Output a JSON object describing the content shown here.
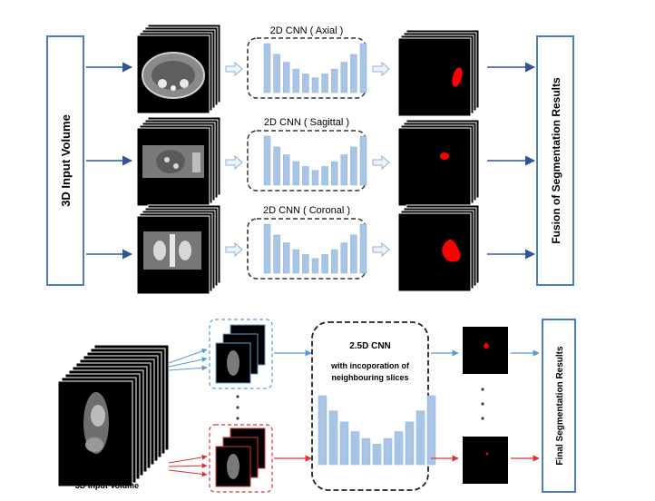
{
  "top": {
    "input_label": "3D  Input  Volume",
    "fusion_label": "Fusion of Segmentation Results",
    "rows": [
      {
        "cnn_label": "2D CNN ( Axial )"
      },
      {
        "cnn_label": "2D CNN ( Sagittal )"
      },
      {
        "cnn_label": "2D CNN ( Coronal )"
      }
    ]
  },
  "bottom": {
    "input_label": "3D Input Volume",
    "cnn_title": "2.5D CNN",
    "cnn_subtitle_line1": "with incoporation of",
    "cnn_subtitle_line2": "neighbouring slices",
    "final_label": "Final Segmentation Results"
  },
  "colors": {
    "box_border": "#4f7cbd",
    "arrow": "#2f5597",
    "bar": "#a9c5e6",
    "bar_edge": "#8fb0d8",
    "segment": "#ff0000",
    "blue_group": "#5b9bd5",
    "red_group": "#e03030"
  }
}
